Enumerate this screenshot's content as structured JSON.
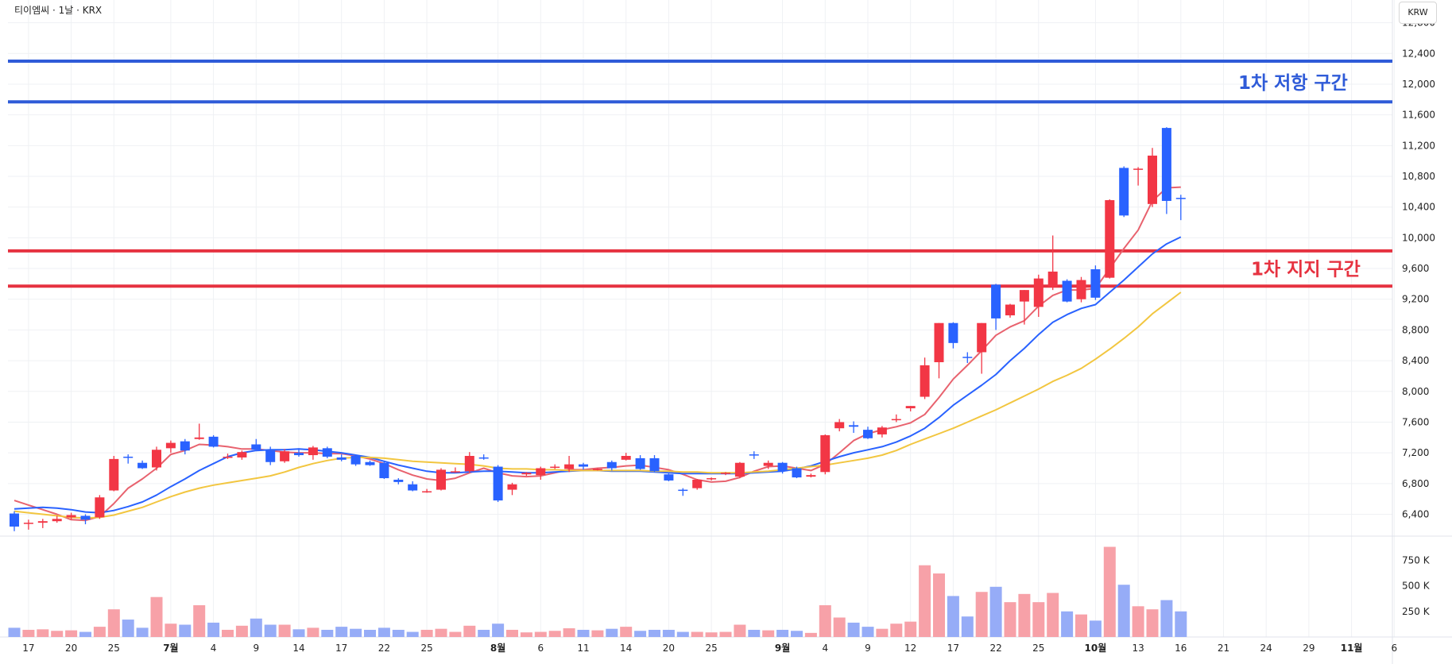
{
  "header": {
    "legend": "티이엠씨 · 1날 · KRX",
    "currency": "KRW"
  },
  "zones": [
    {
      "label": "1차 저항 구간",
      "lines": [
        12300,
        11770
      ],
      "color": "#2f5bd8"
    },
    {
      "label": "1차 지지 구간",
      "lines": [
        9830,
        9370
      ],
      "color": "#e63240"
    }
  ],
  "colors": {
    "up": "#f23645",
    "down": "#2962ff",
    "ma5": "#e8626e",
    "ma10": "#2962ff",
    "ma20": "#f2c640",
    "vol_up": "#f7a1a8",
    "vol_down": "#96acf7"
  },
  "chart_data": {
    "type": "candlestick",
    "y_axis": {
      "ticks": [
        6400,
        6800,
        7200,
        7600,
        8000,
        8400,
        8800,
        9200,
        9600,
        10000,
        10400,
        10800,
        11200,
        11600,
        12000,
        12400,
        12800
      ],
      "tick_labels": [
        "6,400",
        "6,800",
        "7,200",
        "7,600",
        "8,000",
        "8,400",
        "8,800",
        "9,200",
        "9,600",
        "10,000",
        "10,400",
        "10,800",
        "11,200",
        "11,600",
        "12,000",
        "12,400",
        "12,800"
      ],
      "range": [
        6100,
        12800
      ]
    },
    "volume_axis": {
      "ticks": [
        250000,
        500000,
        750000
      ],
      "tick_labels": [
        "250 K",
        "500 K",
        "750 K"
      ],
      "range": [
        0,
        900000
      ]
    },
    "x_axis": {
      "labels": [
        {
          "i": 1,
          "t": "17"
        },
        {
          "i": 4,
          "t": "20"
        },
        {
          "i": 7,
          "t": "25"
        },
        {
          "i": 11,
          "t": "7월",
          "b": true
        },
        {
          "i": 14,
          "t": "4"
        },
        {
          "i": 17,
          "t": "9"
        },
        {
          "i": 20,
          "t": "14"
        },
        {
          "i": 23,
          "t": "17"
        },
        {
          "i": 26,
          "t": "22"
        },
        {
          "i": 29,
          "t": "25"
        },
        {
          "i": 34,
          "t": "8월",
          "b": true
        },
        {
          "i": 37,
          "t": "6"
        },
        {
          "i": 40,
          "t": "11"
        },
        {
          "i": 43,
          "t": "14"
        },
        {
          "i": 46,
          "t": "20"
        },
        {
          "i": 49,
          "t": "25"
        },
        {
          "i": 54,
          "t": "9월",
          "b": true
        },
        {
          "i": 57,
          "t": "4"
        },
        {
          "i": 60,
          "t": "9"
        },
        {
          "i": 63,
          "t": "12"
        },
        {
          "i": 66,
          "t": "17"
        },
        {
          "i": 69,
          "t": "22"
        },
        {
          "i": 72,
          "t": "25"
        },
        {
          "i": 76,
          "t": "10월",
          "b": true
        },
        {
          "i": 79,
          "t": "13"
        },
        {
          "i": 82,
          "t": "16"
        },
        {
          "i": 85,
          "t": "21"
        },
        {
          "i": 88,
          "t": "24"
        },
        {
          "i": 91,
          "t": "29"
        },
        {
          "i": 94,
          "t": "11월",
          "b": true
        },
        {
          "i": 97,
          "t": "6"
        }
      ]
    },
    "candles": [
      [
        6410,
        6440,
        6180,
        6240,
        90000
      ],
      [
        6280,
        6330,
        6200,
        6290,
        70000
      ],
      [
        6290,
        6340,
        6220,
        6310,
        75000
      ],
      [
        6310,
        6380,
        6290,
        6340,
        60000
      ],
      [
        6360,
        6420,
        6330,
        6390,
        65000
      ],
      [
        6380,
        6400,
        6270,
        6330,
        50000
      ],
      [
        6360,
        6650,
        6340,
        6620,
        100000
      ],
      [
        6710,
        7160,
        6700,
        7120,
        270000
      ],
      [
        7150,
        7180,
        7060,
        7140,
        170000
      ],
      [
        7070,
        7100,
        6990,
        7000,
        90000
      ],
      [
        7010,
        7280,
        6970,
        7240,
        390000
      ],
      [
        7260,
        7360,
        7200,
        7330,
        130000
      ],
      [
        7350,
        7380,
        7180,
        7230,
        120000
      ],
      [
        7380,
        7580,
        7370,
        7400,
        310000
      ],
      [
        7410,
        7430,
        7270,
        7280,
        140000
      ],
      [
        7140,
        7190,
        7120,
        7150,
        70000
      ],
      [
        7140,
        7230,
        7110,
        7210,
        110000
      ],
      [
        7310,
        7380,
        7240,
        7240,
        180000
      ],
      [
        7230,
        7280,
        7040,
        7080,
        120000
      ],
      [
        7090,
        7250,
        7070,
        7220,
        120000
      ],
      [
        7200,
        7260,
        7150,
        7170,
        75000
      ],
      [
        7170,
        7290,
        7110,
        7270,
        90000
      ],
      [
        7260,
        7280,
        7130,
        7150,
        70000
      ],
      [
        7140,
        7180,
        7090,
        7110,
        100000
      ],
      [
        7160,
        7170,
        7030,
        7050,
        80000
      ],
      [
        7080,
        7100,
        7030,
        7040,
        70000
      ],
      [
        7070,
        7090,
        6860,
        6870,
        90000
      ],
      [
        6850,
        6870,
        6790,
        6820,
        70000
      ],
      [
        6790,
        6830,
        6700,
        6710,
        50000
      ],
      [
        6690,
        6730,
        6680,
        6700,
        70000
      ],
      [
        6720,
        7000,
        6710,
        6980,
        80000
      ],
      [
        6960,
        7010,
        6940,
        6960,
        50000
      ],
      [
        6960,
        7210,
        6940,
        7160,
        110000
      ],
      [
        7140,
        7180,
        7110,
        7130,
        70000
      ],
      [
        7020,
        7040,
        6560,
        6580,
        130000
      ],
      [
        6720,
        6810,
        6650,
        6790,
        70000
      ],
      [
        6920,
        6950,
        6900,
        6940,
        45000
      ],
      [
        6910,
        7020,
        6850,
        7000,
        50000
      ],
      [
        7020,
        7050,
        6990,
        7020,
        60000
      ],
      [
        6990,
        7160,
        6950,
        7050,
        85000
      ],
      [
        7050,
        7070,
        6980,
        7020,
        70000
      ],
      [
        6980,
        7000,
        6970,
        6990,
        65000
      ],
      [
        7080,
        7100,
        6970,
        7000,
        80000
      ],
      [
        7110,
        7200,
        7100,
        7160,
        100000
      ],
      [
        7130,
        7170,
        6980,
        6990,
        60000
      ],
      [
        7130,
        7170,
        6950,
        6960,
        70000
      ],
      [
        6920,
        6930,
        6830,
        6840,
        70000
      ],
      [
        6720,
        6740,
        6640,
        6710,
        50000
      ],
      [
        6740,
        6860,
        6720,
        6850,
        50000
      ],
      [
        6860,
        6880,
        6840,
        6870,
        45000
      ],
      [
        6930,
        6950,
        6910,
        6940,
        50000
      ],
      [
        6890,
        7080,
        6870,
        7070,
        120000
      ],
      [
        7180,
        7220,
        7120,
        7170,
        70000
      ],
      [
        7030,
        7100,
        6990,
        7070,
        65000
      ],
      [
        7070,
        7080,
        6930,
        6960,
        70000
      ],
      [
        7000,
        7020,
        6870,
        6880,
        60000
      ],
      [
        6890,
        6930,
        6880,
        6910,
        40000
      ],
      [
        6950,
        7440,
        6920,
        7430,
        310000
      ],
      [
        7520,
        7640,
        7480,
        7600,
        190000
      ],
      [
        7560,
        7610,
        7460,
        7540,
        140000
      ],
      [
        7500,
        7540,
        7380,
        7390,
        100000
      ],
      [
        7440,
        7550,
        7400,
        7530,
        80000
      ],
      [
        7640,
        7700,
        7600,
        7640,
        130000
      ],
      [
        7780,
        7810,
        7740,
        7810,
        150000
      ],
      [
        7930,
        8440,
        7900,
        8340,
        700000
      ],
      [
        8380,
        8890,
        8170,
        8890,
        620000
      ],
      [
        8890,
        8900,
        8560,
        8630,
        400000
      ],
      [
        8450,
        8510,
        8370,
        8440,
        200000
      ],
      [
        8510,
        8890,
        8230,
        8890,
        440000
      ],
      [
        9390,
        9400,
        8800,
        8950,
        490000
      ],
      [
        8990,
        9140,
        8960,
        9130,
        340000
      ],
      [
        9170,
        9320,
        8870,
        9320,
        420000
      ],
      [
        9100,
        9520,
        8970,
        9470,
        340000
      ],
      [
        9360,
        10030,
        9320,
        9560,
        430000
      ],
      [
        9440,
        9460,
        9160,
        9170,
        250000
      ],
      [
        9200,
        9490,
        9160,
        9450,
        220000
      ],
      [
        9590,
        9640,
        9190,
        9220,
        160000
      ],
      [
        9480,
        10500,
        9470,
        10490,
        880000
      ],
      [
        10910,
        10930,
        10270,
        10290,
        510000
      ],
      [
        10900,
        10920,
        10680,
        10900,
        300000
      ],
      [
        10440,
        11170,
        10400,
        11070,
        270000
      ],
      [
        11430,
        11440,
        10310,
        10480,
        360000
      ],
      [
        10520,
        10560,
        10230,
        10510,
        250000
      ]
    ],
    "moving_averages": [
      {
        "name": "MA5",
        "color": "#e8626e",
        "start": 0,
        "values": [
          6580,
          6520,
          6460,
          6400,
          6330,
          6320,
          6370,
          6540,
          6740,
          6860,
          7000,
          7180,
          7230,
          7310,
          7300,
          7280,
          7250,
          7250,
          7230,
          7210,
          7200,
          7200,
          7190,
          7190,
          7160,
          7120,
          7060,
          6980,
          6910,
          6860,
          6840,
          6870,
          6940,
          7000,
          6940,
          6900,
          6890,
          6900,
          6940,
          6980,
          6980,
          7000,
          7010,
          7030,
          7040,
          7010,
          6980,
          6920,
          6850,
          6820,
          6830,
          6880,
          6960,
          7020,
          7030,
          7000,
          6970,
          7050,
          7200,
          7360,
          7450,
          7500,
          7540,
          7590,
          7700,
          7920,
          8160,
          8340,
          8530,
          8730,
          8840,
          8920,
          9110,
          9250,
          9320,
          9320,
          9340,
          9600,
          9860,
          10100,
          10480,
          10650,
          10660
        ]
      },
      {
        "name": "MA10",
        "color": "#2962ff",
        "start": 0,
        "values": [
          6470,
          6480,
          6490,
          6480,
          6460,
          6430,
          6420,
          6450,
          6500,
          6560,
          6650,
          6760,
          6860,
          6970,
          7060,
          7150,
          7200,
          7230,
          7240,
          7240,
          7250,
          7240,
          7220,
          7200,
          7170,
          7140,
          7090,
          7040,
          7000,
          6960,
          6940,
          6940,
          6950,
          6960,
          6960,
          6950,
          6940,
          6940,
          6950,
          6960,
          6970,
          6970,
          6960,
          6960,
          6960,
          6950,
          6940,
          6930,
          6930,
          6930,
          6930,
          6930,
          6940,
          6950,
          6960,
          6990,
          7030,
          7090,
          7150,
          7200,
          7240,
          7280,
          7340,
          7420,
          7520,
          7660,
          7820,
          7950,
          8080,
          8220,
          8400,
          8560,
          8740,
          8900,
          9000,
          9080,
          9130,
          9290,
          9450,
          9620,
          9790,
          9920,
          10010
        ]
      },
      {
        "name": "MA20",
        "color": "#f2c640",
        "start": 0,
        "values": [
          6440,
          6420,
          6400,
          6380,
          6360,
          6350,
          6360,
          6390,
          6440,
          6490,
          6560,
          6630,
          6690,
          6740,
          6780,
          6810,
          6840,
          6870,
          6900,
          6950,
          7010,
          7060,
          7100,
          7130,
          7140,
          7140,
          7130,
          7110,
          7090,
          7080,
          7070,
          7060,
          7050,
          7030,
          7000,
          6990,
          6990,
          6980,
          6980,
          6970,
          6970,
          6970,
          6970,
          6970,
          6970,
          6960,
          6960,
          6950,
          6950,
          6940,
          6940,
          6940,
          6950,
          6960,
          6980,
          7000,
          7020,
          7040,
          7070,
          7100,
          7130,
          7170,
          7230,
          7310,
          7380,
          7450,
          7520,
          7600,
          7680,
          7760,
          7850,
          7940,
          8030,
          8130,
          8210,
          8300,
          8420,
          8550,
          8690,
          8840,
          9010,
          9150,
          9290
        ]
      }
    ]
  }
}
